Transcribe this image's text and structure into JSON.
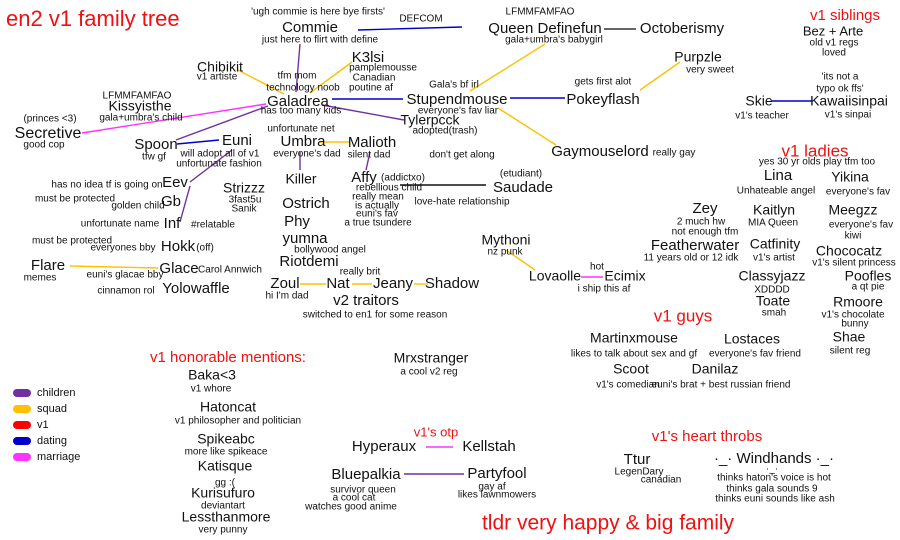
{
  "sections": {
    "title": "en2 v1 family tree",
    "siblings": "v1 siblings",
    "ladies": "v1 ladies",
    "guys": "v1 guys",
    "honorable": "v1 honorable mentions:",
    "otp": "v1's otp",
    "heart_throbs": "v1's heart throbs",
    "footer": "tldr very happy & big family"
  },
  "legend": [
    {
      "label": "children",
      "color": "#7030a0"
    },
    {
      "label": "squad",
      "color": "#ffc000"
    },
    {
      "label": "v1",
      "color": "#ff0000"
    },
    {
      "label": "dating",
      "color": "#0000cc"
    },
    {
      "label": "marriage",
      "color": "#ff33ff"
    }
  ],
  "labels": [
    "'ugh commie is here bye firsts'",
    "Commie",
    "just here to flirt with define",
    "DEFCOM",
    "LFMMFAMFAO",
    "Queen Definefun",
    "gala+umbra's babygirl",
    "Octoberismy",
    "Bez + Arte",
    "old v1 regs",
    "loved",
    "Chibikit",
    "v1 artiste",
    "K3lsi",
    "pamplemousse",
    "Canadian",
    "poutine af",
    "tfm mom",
    "technology noob",
    "Galadrea",
    "has too many kids",
    "Gala's bf irl",
    "Stupendmouse",
    "everyone's fav liar",
    "Tylerpcck",
    "adopted(trash)",
    "LFMMFAMFAO",
    "Kissyisthe",
    "gala+umbra's child",
    "(princes <3)",
    "Secretive",
    "good cop",
    "gets first alot",
    "Pokeyflash",
    "Purpzle",
    "very sweet",
    "'its not a",
    "typo ok ffs'",
    "Kawaiisinpai",
    "v1's sinpai",
    "Skie",
    "v1's teacher",
    "unfortunate net",
    "Spoon",
    "tfw gf",
    "Euni",
    "will adopt all of v1",
    "unfortunate fashion",
    "Umbra",
    "everyone's dad",
    "Malioth",
    "silent dad",
    "don't get along",
    "Gaymouselord",
    "really gay",
    "yes 30 yr olds play tfm too",
    "Lina",
    "Yikina",
    "Unhateable angel",
    "everyone's fav",
    "has no idea tf is going on",
    "Eev",
    "must be protected",
    "Gb",
    "golden child",
    "Killer",
    "Strizzz",
    "3fast5u",
    "Sanik",
    "Affy",
    "(addictxo)",
    "rebellious child",
    "really mean",
    "is actually",
    "euni's fav",
    "a true tsundere",
    "(etudiant)",
    "Saudade",
    "love-hate relationship",
    "Ostrich",
    "Phy",
    "unfortunate name",
    "Inf",
    "#relatable",
    "Zey",
    "2 much hw",
    "not enough tfm",
    "Kaitlyn",
    "MIA Queen",
    "Meegzz",
    "everyone's fav",
    "kiwi",
    "must be protected",
    "everyones bby",
    "Hokk",
    "(off)",
    "yumna",
    "bollywood angel",
    "Riotdemi",
    "Mythoni",
    "nz punk",
    "Featherwater",
    "11 years old or 12 idk",
    "Catfinity",
    "v1's artist",
    "Chococatz",
    "v1's silent princess",
    "Flare",
    "memes",
    "euni's glacae bby",
    "Glace",
    "Carol Annwich",
    "really brit",
    "hot",
    "Lovaolle",
    "Ecimix",
    "i ship this af",
    "Classyjazz",
    "XDDDD",
    "Poofles",
    "a qt pie",
    "cinnamon rol",
    "Yolowaffle",
    "Zoul",
    "hi I'm dad",
    "Nat",
    "Jeany",
    "Shadow",
    "v2 traitors",
    "switched to en1 for some reason",
    "Toate",
    "smah",
    "Rmoore",
    "v1's chocolate",
    "bunny",
    "Martinxmouse",
    "likes to talk about sex and gf",
    "Lostaces",
    "everyone's fav friend",
    "Shae",
    "silent reg",
    "Mrxstranger",
    "a cool v2 reg",
    "Scoot",
    "v1's comedian",
    "Danilaz",
    "euni's brat + best russian friend",
    "Baka<3",
    "v1 whore",
    "Hatoncat",
    "v1 philosopher and politician",
    "Spikeabc",
    "more like spikeace",
    "Katisque",
    "gg :(",
    "Kurisufuro",
    "deviantart",
    "Lessthanmore",
    "very punny",
    "Hyperaux",
    "Kellstah",
    "Bluepalkia",
    "survivor queen",
    "a cool cat",
    "watches good anime",
    "Partyfool",
    "gay af",
    "likes lawnmowers",
    "Ttur",
    "LegenDary",
    "canadian",
    "·_· Windhands ·_·",
    "·_·",
    "thinks haton's voice is hot",
    "thinks gala sounds 9",
    "thinks euni sounds like ash"
  ]
}
